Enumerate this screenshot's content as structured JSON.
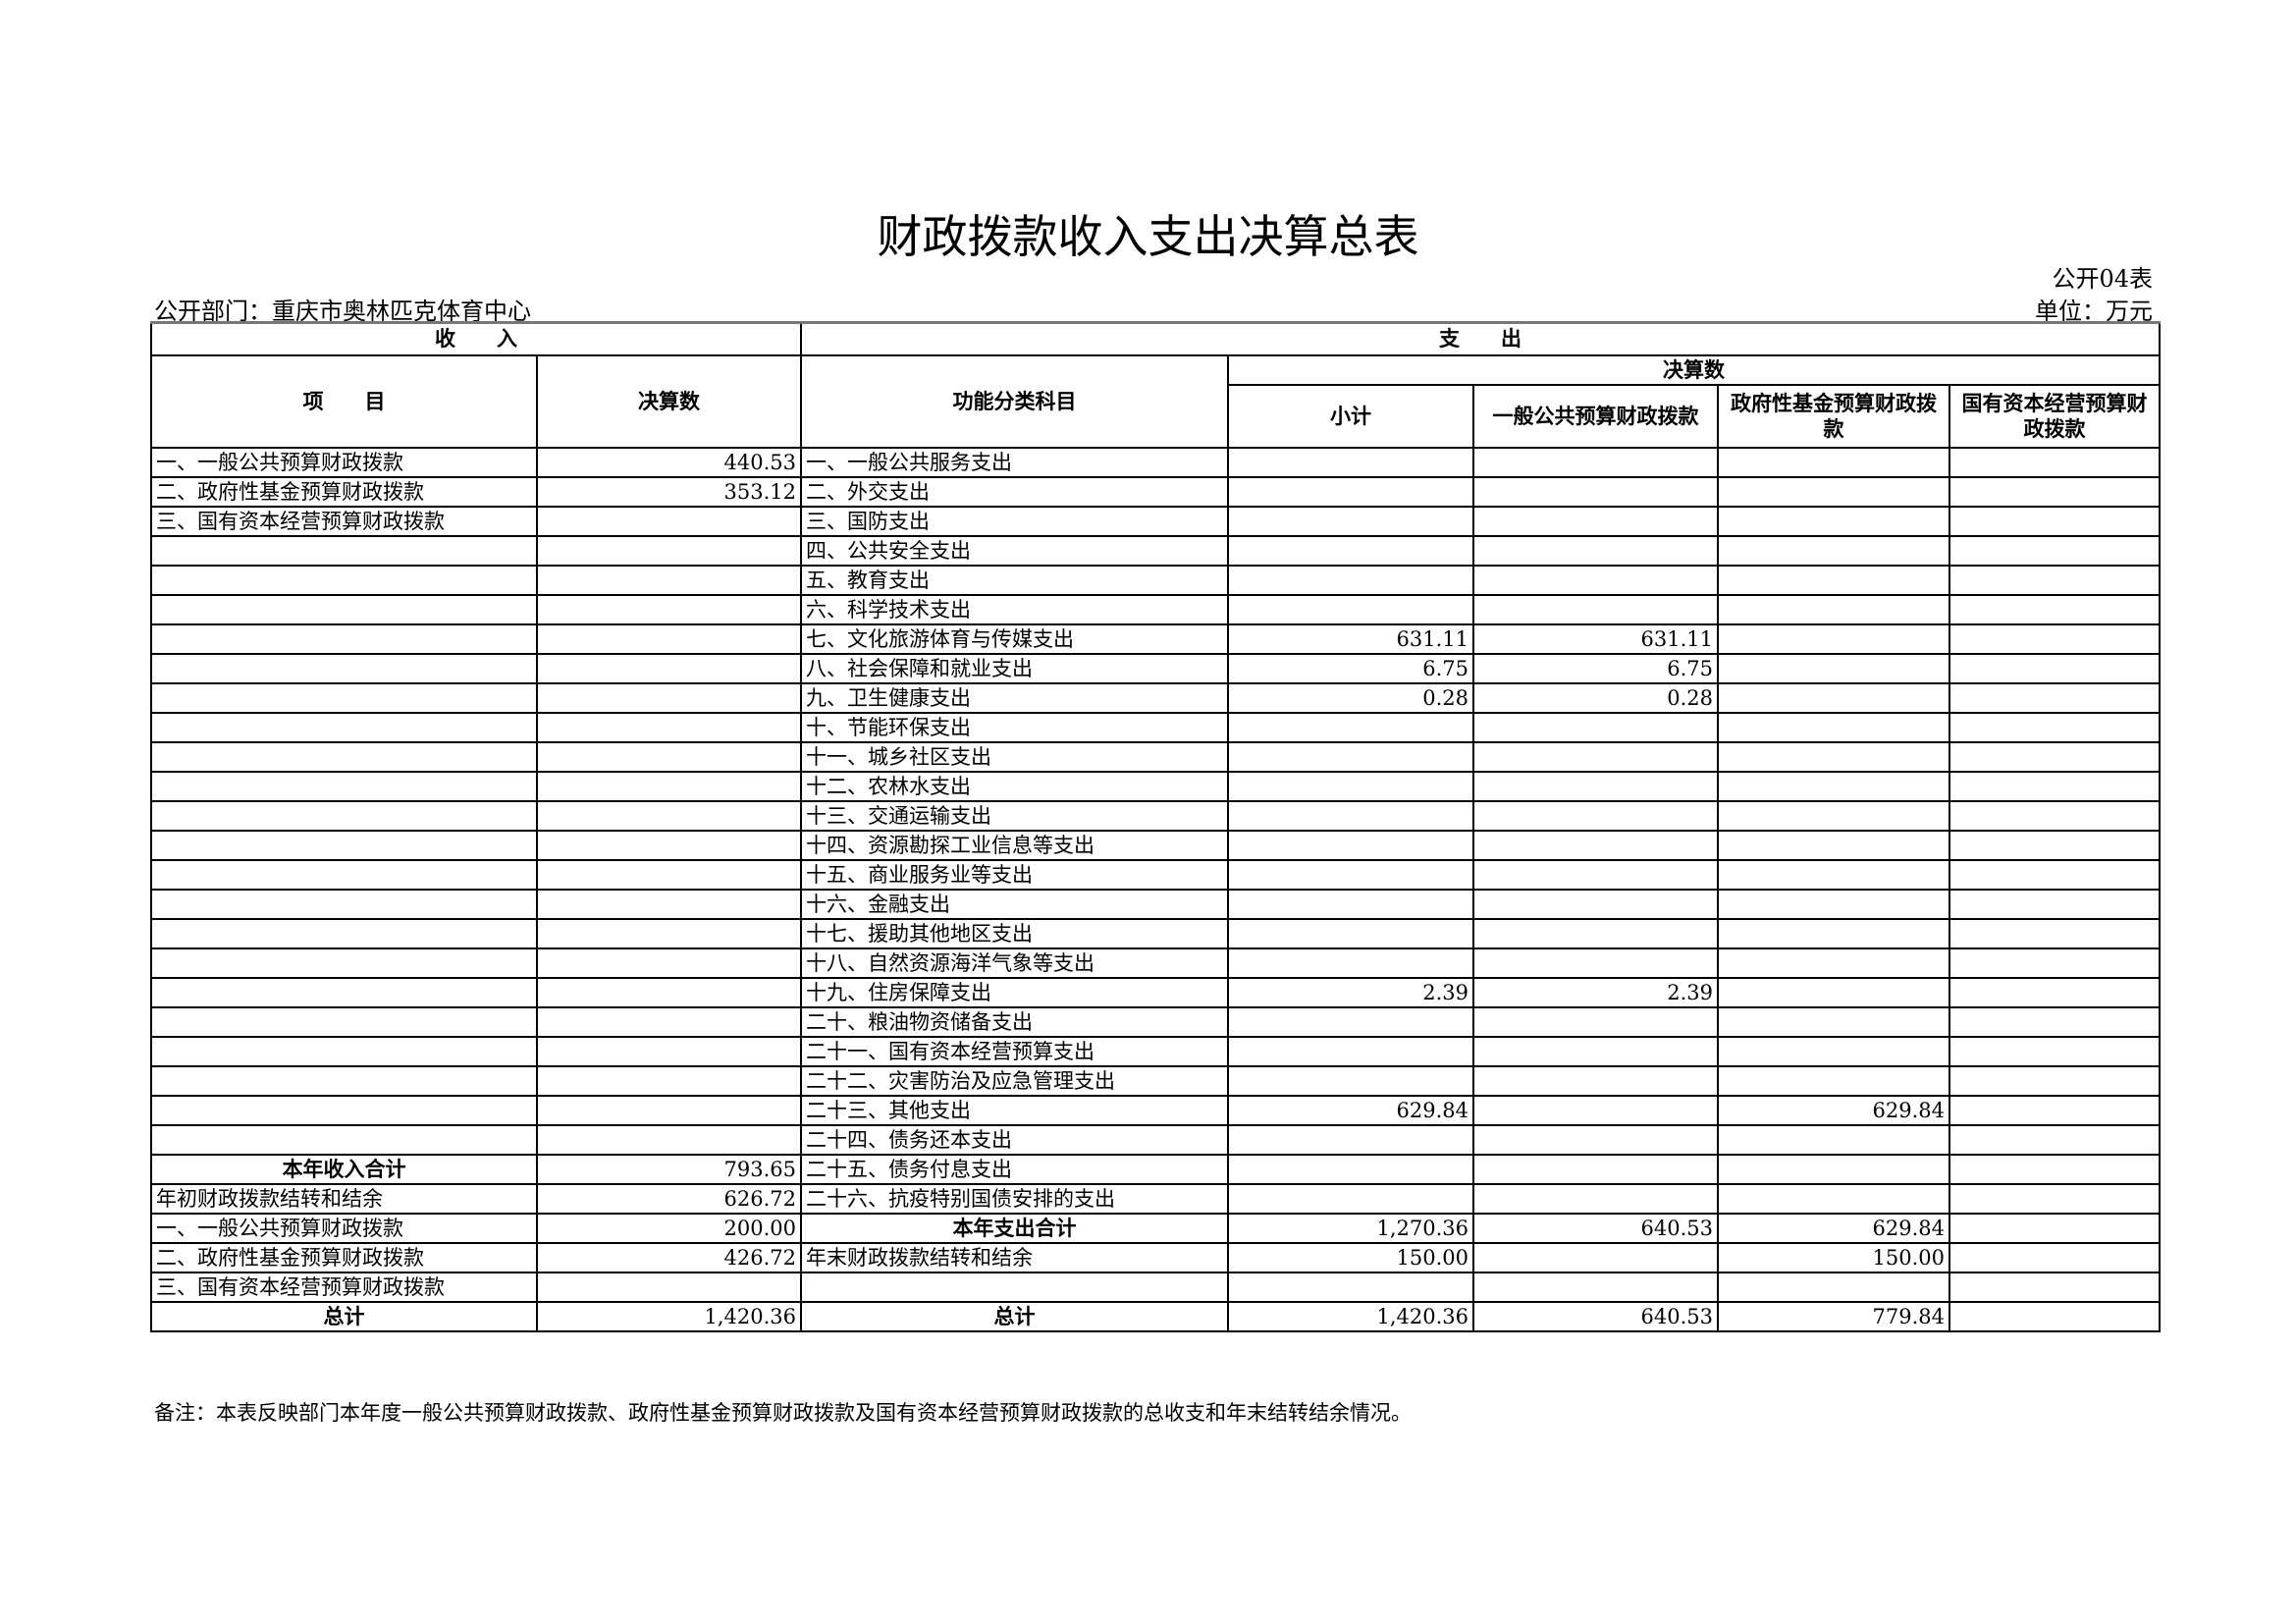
{
  "title": "财政拨款收入支出决算总表",
  "form_no": "公开04表",
  "department": "公开部门：重庆市奥林匹克体育中心",
  "unit": "单位：万元",
  "headers": {
    "income": "收　　入",
    "expense": "支　　出",
    "item": "项　　目",
    "amount": "决算数",
    "function_category": "功能分类科目",
    "final_amount": "决算数",
    "subtotal": "小计",
    "general_public": "一般公共预算财政拨款",
    "gov_fund": "政府性基金预算财政拨款",
    "state_capital": "国有资本经营预算财政拨款"
  },
  "rows": [
    {
      "income_item": "一、一般公共预算财政拨款",
      "income_amount": "440.53",
      "expense_item": "一、一般公共服务支出",
      "subtotal": "",
      "general": "",
      "fund": "",
      "capital": ""
    },
    {
      "income_item": "二、政府性基金预算财政拨款",
      "income_amount": "353.12",
      "expense_item": "二、外交支出",
      "subtotal": "",
      "general": "",
      "fund": "",
      "capital": ""
    },
    {
      "income_item": "三、国有资本经营预算财政拨款",
      "income_amount": "",
      "expense_item": "三、国防支出",
      "subtotal": "",
      "general": "",
      "fund": "",
      "capital": ""
    },
    {
      "income_item": "",
      "income_amount": "",
      "expense_item": "四、公共安全支出",
      "subtotal": "",
      "general": "",
      "fund": "",
      "capital": ""
    },
    {
      "income_item": "",
      "income_amount": "",
      "expense_item": "五、教育支出",
      "subtotal": "",
      "general": "",
      "fund": "",
      "capital": ""
    },
    {
      "income_item": "",
      "income_amount": "",
      "expense_item": "六、科学技术支出",
      "subtotal": "",
      "general": "",
      "fund": "",
      "capital": ""
    },
    {
      "income_item": "",
      "income_amount": "",
      "expense_item": "七、文化旅游体育与传媒支出",
      "subtotal": "631.11",
      "general": "631.11",
      "fund": "",
      "capital": ""
    },
    {
      "income_item": "",
      "income_amount": "",
      "expense_item": "八、社会保障和就业支出",
      "subtotal": "6.75",
      "general": "6.75",
      "fund": "",
      "capital": ""
    },
    {
      "income_item": "",
      "income_amount": "",
      "expense_item": "九、卫生健康支出",
      "subtotal": "0.28",
      "general": "0.28",
      "fund": "",
      "capital": ""
    },
    {
      "income_item": "",
      "income_amount": "",
      "expense_item": "十、节能环保支出",
      "subtotal": "",
      "general": "",
      "fund": "",
      "capital": ""
    },
    {
      "income_item": "",
      "income_amount": "",
      "expense_item": "十一、城乡社区支出",
      "subtotal": "",
      "general": "",
      "fund": "",
      "capital": ""
    },
    {
      "income_item": "",
      "income_amount": "",
      "expense_item": "十二、农林水支出",
      "subtotal": "",
      "general": "",
      "fund": "",
      "capital": ""
    },
    {
      "income_item": "",
      "income_amount": "",
      "expense_item": "十三、交通运输支出",
      "subtotal": "",
      "general": "",
      "fund": "",
      "capital": ""
    },
    {
      "income_item": "",
      "income_amount": "",
      "expense_item": "十四、资源勘探工业信息等支出",
      "subtotal": "",
      "general": "",
      "fund": "",
      "capital": ""
    },
    {
      "income_item": "",
      "income_amount": "",
      "expense_item": "十五、商业服务业等支出",
      "subtotal": "",
      "general": "",
      "fund": "",
      "capital": ""
    },
    {
      "income_item": "",
      "income_amount": "",
      "expense_item": "十六、金融支出",
      "subtotal": "",
      "general": "",
      "fund": "",
      "capital": ""
    },
    {
      "income_item": "",
      "income_amount": "",
      "expense_item": "十七、援助其他地区支出",
      "subtotal": "",
      "general": "",
      "fund": "",
      "capital": ""
    },
    {
      "income_item": "",
      "income_amount": "",
      "expense_item": "十八、自然资源海洋气象等支出",
      "subtotal": "",
      "general": "",
      "fund": "",
      "capital": ""
    },
    {
      "income_item": "",
      "income_amount": "",
      "expense_item": "十九、住房保障支出",
      "subtotal": "2.39",
      "general": "2.39",
      "fund": "",
      "capital": ""
    },
    {
      "income_item": "",
      "income_amount": "",
      "expense_item": "二十、粮油物资储备支出",
      "subtotal": "",
      "general": "",
      "fund": "",
      "capital": ""
    },
    {
      "income_item": "",
      "income_amount": "",
      "expense_item": "二十一、国有资本经营预算支出",
      "subtotal": "",
      "general": "",
      "fund": "",
      "capital": ""
    },
    {
      "income_item": "",
      "income_amount": "",
      "expense_item": "二十二、灾害防治及应急管理支出",
      "subtotal": "",
      "general": "",
      "fund": "",
      "capital": ""
    },
    {
      "income_item": "",
      "income_amount": "",
      "expense_item": "二十三、其他支出",
      "subtotal": "629.84",
      "general": "",
      "fund": "629.84",
      "capital": ""
    },
    {
      "income_item": "",
      "income_amount": "",
      "expense_item": "二十四、债务还本支出",
      "subtotal": "",
      "general": "",
      "fund": "",
      "capital": ""
    },
    {
      "income_item": "本年收入合计",
      "income_bold": true,
      "income_amount": "793.65",
      "expense_item": "二十五、债务付息支出",
      "subtotal": "",
      "general": "",
      "fund": "",
      "capital": ""
    },
    {
      "income_item": "年初财政拨款结转和结余",
      "income_amount": "626.72",
      "expense_item": "二十六、抗疫特别国债安排的支出",
      "subtotal": "",
      "general": "",
      "fund": "",
      "capital": ""
    },
    {
      "income_item": "一、一般公共预算财政拨款",
      "income_amount": "200.00",
      "expense_item": "本年支出合计",
      "expense_bold": true,
      "subtotal": "1,270.36",
      "general": "640.53",
      "fund": "629.84",
      "capital": ""
    },
    {
      "income_item": "二、政府性基金预算财政拨款",
      "income_amount": "426.72",
      "expense_item": "年末财政拨款结转和结余",
      "subtotal": "150.00",
      "general": "",
      "fund": "150.00",
      "capital": ""
    },
    {
      "income_item": "三、国有资本经营预算财政拨款",
      "income_amount": "",
      "expense_item": "",
      "subtotal": "",
      "general": "",
      "fund": "",
      "capital": ""
    },
    {
      "income_item": "总计",
      "income_bold": true,
      "income_amount": "1,420.36",
      "expense_item": "总计",
      "expense_bold": true,
      "subtotal": "1,420.36",
      "general": "640.53",
      "fund": "779.84",
      "capital": ""
    }
  ],
  "note": "备注：本表反映部门本年度一般公共预算财政拨款、政府性基金预算财政拨款及国有资本经营预算财政拨款的总收支和年末结转结余情况。"
}
